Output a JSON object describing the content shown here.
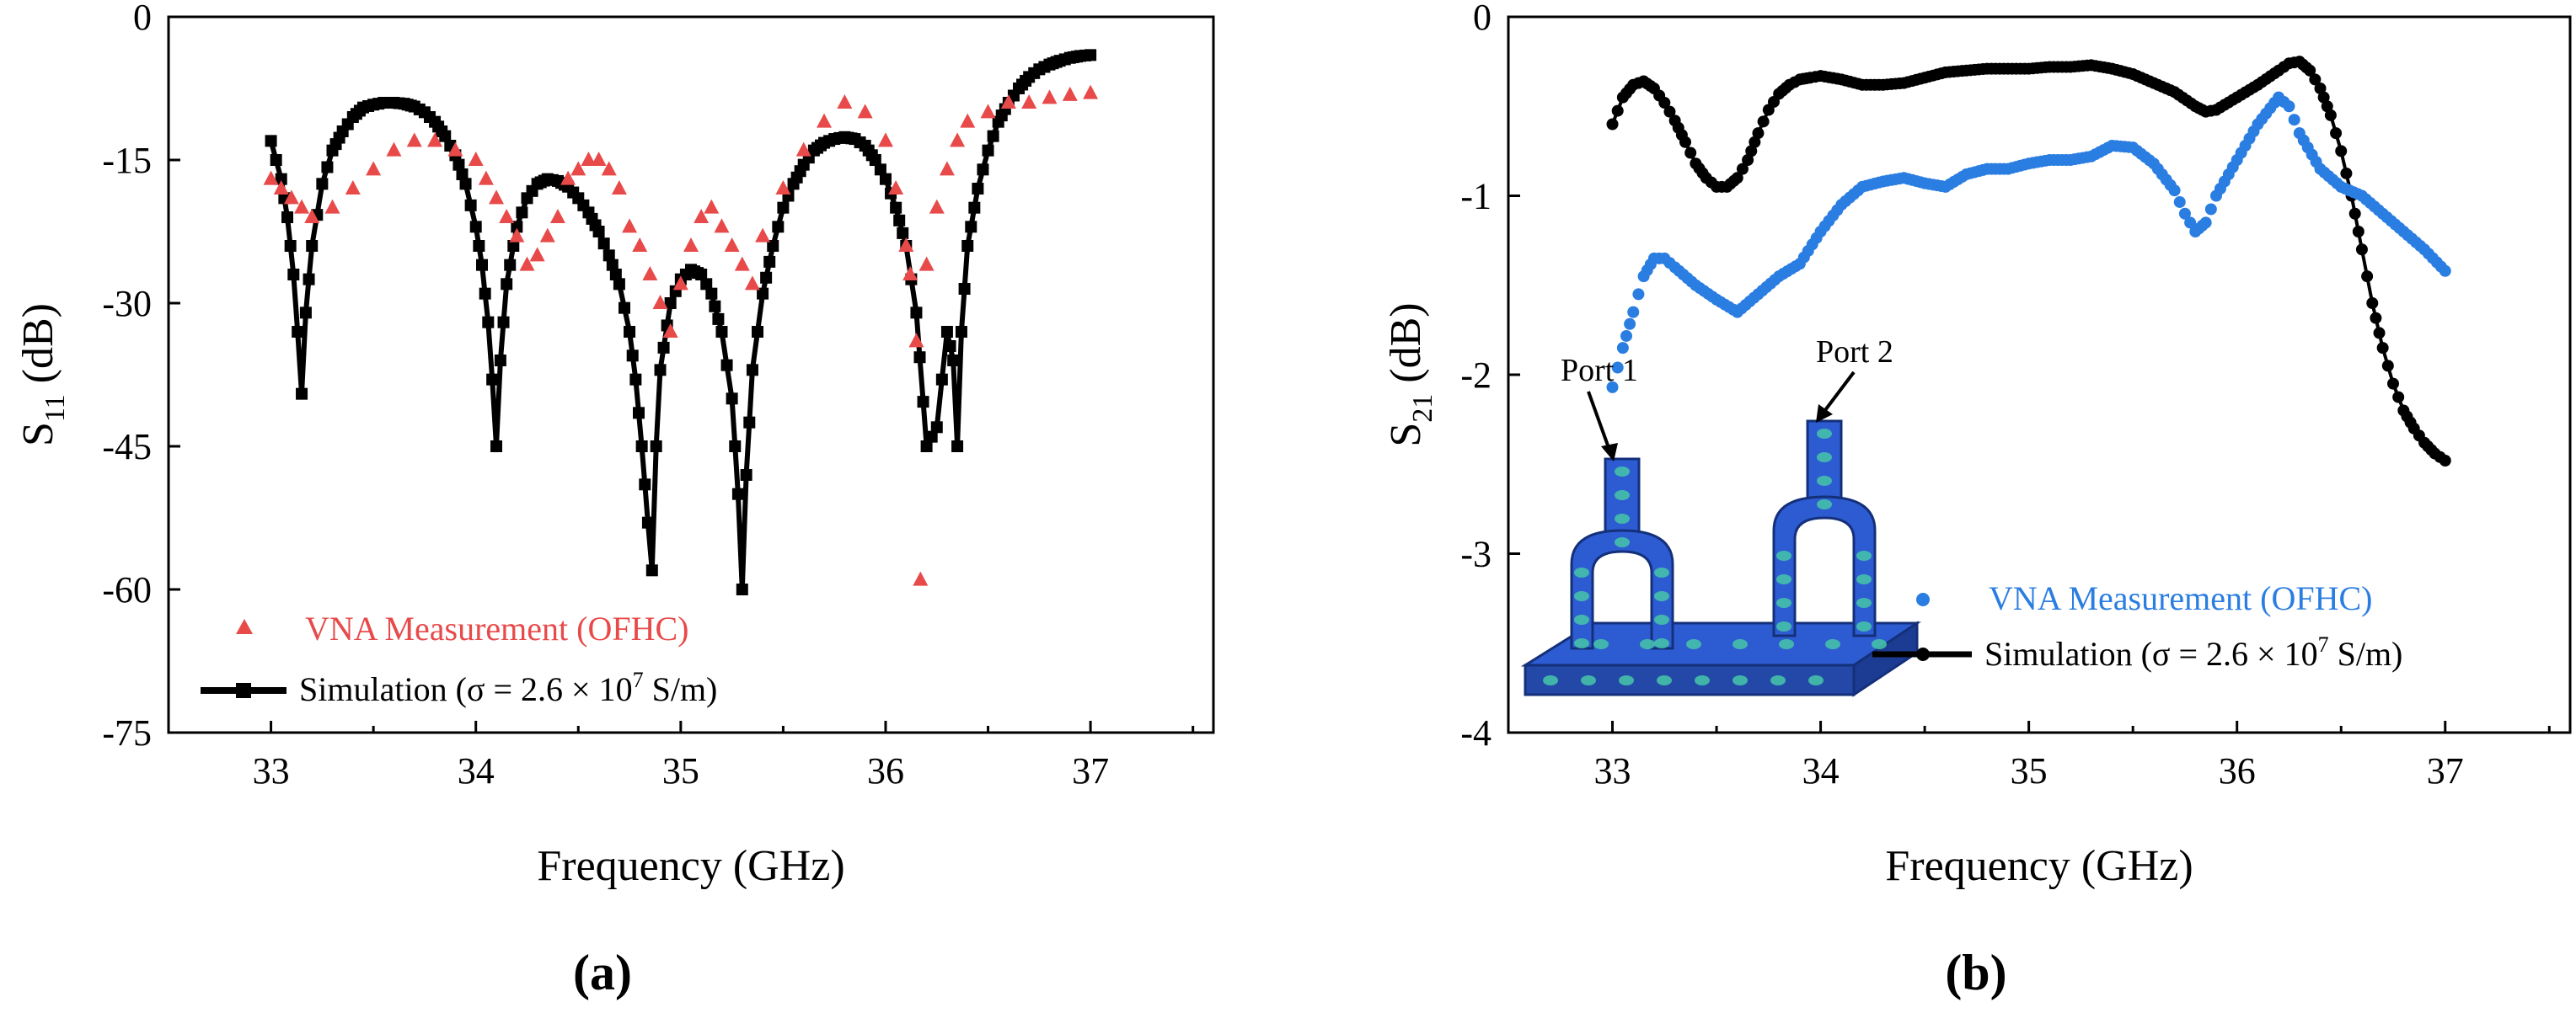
{
  "colors": {
    "measurement": "#e84a4a",
    "measurement_b": "#2a7de1",
    "simulation": "#000000",
    "model_body": "#2d5bd1",
    "model_spot": "#46c7a8"
  },
  "chart_data": [
    {
      "type": "scatter",
      "panel_label": "(a)",
      "xlabel": "Frequency (GHz)",
      "ylabel_main": "S",
      "ylabel_sub": "11",
      "ylabel_unit": " (dB)",
      "xlim": [
        32.5,
        37.6
      ],
      "ylim": [
        -75,
        0
      ],
      "xticks": [
        33,
        34,
        35,
        36,
        37
      ],
      "xtick_labels": [
        "33",
        "34",
        "35",
        "36",
        "37"
      ],
      "yticks": [
        0,
        -15,
        -30,
        -45,
        -60,
        -75
      ],
      "ytick_labels": [
        "0",
        "-15",
        "-30",
        "-45",
        "-60",
        "-75"
      ],
      "legend": {
        "measurement": "VNA Measurement (OFHC)",
        "simulation_prefix": "Simulation (σ = 2.6 × 10",
        "simulation_exp": "7",
        "simulation_suffix": " S/m)"
      },
      "series": [
        {
          "name": "VNA Measurement (OFHC)",
          "marker": "triangle",
          "x": [
            33.0,
            33.05,
            33.1,
            33.15,
            33.2,
            33.3,
            33.4,
            33.5,
            33.6,
            33.7,
            33.8,
            33.9,
            34.0,
            34.05,
            34.1,
            34.15,
            34.2,
            34.25,
            34.3,
            34.35,
            34.4,
            34.45,
            34.5,
            34.55,
            34.6,
            34.65,
            34.7,
            34.75,
            34.8,
            34.85,
            34.9,
            34.95,
            35.0,
            35.05,
            35.1,
            35.15,
            35.2,
            35.25,
            35.3,
            35.35,
            35.4,
            35.5,
            35.6,
            35.7,
            35.8,
            35.9,
            36.0,
            36.05,
            36.1,
            36.12,
            36.15,
            36.17,
            36.2,
            36.25,
            36.3,
            36.35,
            36.4,
            36.5,
            36.6,
            36.7,
            36.8,
            36.9,
            37.0
          ],
          "y": [
            -17,
            -18,
            -19,
            -20,
            -21,
            -20,
            -18,
            -16,
            -14,
            -13,
            -13,
            -14,
            -15,
            -17,
            -19,
            -21,
            -23,
            -26,
            -25,
            -23,
            -21,
            -17,
            -16,
            -15,
            -15,
            -16,
            -18,
            -22,
            -24,
            -27,
            -30,
            -33,
            -28,
            -24,
            -21,
            -20,
            -22,
            -24,
            -26,
            -28,
            -23,
            -18,
            -14,
            -11,
            -9,
            -10,
            -13,
            -18,
            -24,
            -27,
            -34,
            -59,
            -26,
            -20,
            -16,
            -13,
            -11,
            -10,
            -9,
            -9,
            -8.5,
            -8.2,
            -8
          ]
        },
        {
          "name": "Simulation (σ = 2.6 × 10^7 S/m)",
          "marker": "square",
          "x": [
            33.0,
            33.05,
            33.08,
            33.11,
            33.13,
            33.15,
            33.17,
            33.2,
            33.25,
            33.3,
            33.35,
            33.4,
            33.45,
            33.5,
            33.55,
            33.6,
            33.65,
            33.7,
            33.75,
            33.8,
            33.85,
            33.9,
            33.95,
            34.0,
            34.03,
            34.06,
            34.08,
            34.1,
            34.12,
            34.15,
            34.2,
            34.25,
            34.3,
            34.35,
            34.4,
            34.45,
            34.5,
            34.55,
            34.6,
            34.65,
            34.7,
            34.75,
            34.78,
            34.81,
            34.84,
            34.86,
            34.88,
            34.9,
            34.95,
            35.0,
            35.05,
            35.1,
            35.15,
            35.2,
            35.25,
            35.28,
            35.3,
            35.32,
            35.35,
            35.4,
            35.45,
            35.5,
            35.55,
            35.6,
            35.65,
            35.7,
            35.75,
            35.8,
            35.85,
            35.9,
            35.95,
            36.0,
            36.05,
            36.1,
            36.15,
            36.2,
            36.25,
            36.3,
            36.33,
            36.35,
            36.37,
            36.4,
            36.45,
            36.5,
            36.55,
            36.6,
            36.65,
            36.7,
            36.75,
            36.8,
            36.85,
            36.9,
            36.95,
            37.0
          ],
          "y": [
            -13,
            -17,
            -21,
            -27,
            -33,
            -39.5,
            -31,
            -24,
            -17.5,
            -14,
            -12,
            -10.5,
            -9.5,
            -9.2,
            -9.0,
            -9.0,
            -9.1,
            -9.4,
            -10,
            -11,
            -12.5,
            -14.5,
            -17.5,
            -22,
            -26,
            -32,
            -38,
            -45,
            -36,
            -28,
            -22,
            -19,
            -17.5,
            -17,
            -17.2,
            -17.8,
            -19,
            -20.5,
            -22.5,
            -25,
            -28,
            -33,
            -38,
            -45,
            -53,
            -58,
            -45,
            -37,
            -30,
            -27.5,
            -26.5,
            -27,
            -29,
            -33,
            -40,
            -50,
            -60,
            -48,
            -37,
            -29,
            -24,
            -20,
            -17.5,
            -15.5,
            -14,
            -13.2,
            -12.8,
            -12.6,
            -12.8,
            -13.5,
            -15,
            -17,
            -20,
            -24,
            -31,
            -45,
            -43,
            -33,
            -36,
            -45,
            -33,
            -24,
            -18,
            -14,
            -11,
            -9,
            -7.5,
            -6.3,
            -5.5,
            -5,
            -4.6,
            -4.3,
            -4.1,
            -4.0
          ]
        }
      ]
    },
    {
      "type": "scatter",
      "panel_label": "(b)",
      "xlabel": "Frequency (GHz)",
      "ylabel_main": "S",
      "ylabel_sub": "21",
      "ylabel_unit": " (dB)",
      "xlim": [
        32.5,
        37.6
      ],
      "ylim": [
        -4,
        0
      ],
      "xticks": [
        33,
        34,
        35,
        36,
        37
      ],
      "xtick_labels": [
        "33",
        "34",
        "35",
        "36",
        "37"
      ],
      "yticks": [
        0,
        -1,
        -2,
        -3,
        -4
      ],
      "ytick_labels": [
        "0",
        "-1",
        "-2",
        "-3",
        "-4"
      ],
      "legend": {
        "measurement": "VNA Measurement (OFHC)",
        "simulation_prefix": "Simulation (σ = 2.6 × 10",
        "simulation_exp": "7",
        "simulation_suffix": " S/m)"
      },
      "annotations": {
        "port1": "Port 1",
        "port2": "Port 2"
      },
      "series": [
        {
          "name": "VNA Measurement (OFHC)",
          "marker": "circle",
          "x": [
            33.0,
            33.05,
            33.1,
            33.15,
            33.2,
            33.25,
            33.3,
            33.4,
            33.5,
            33.6,
            33.7,
            33.8,
            33.9,
            34.0,
            34.1,
            34.2,
            34.3,
            34.4,
            34.5,
            34.6,
            34.7,
            34.8,
            34.9,
            35.0,
            35.1,
            35.2,
            35.3,
            35.4,
            35.5,
            35.6,
            35.7,
            35.75,
            35.8,
            35.85,
            35.9,
            36.0,
            36.1,
            36.2,
            36.25,
            36.3,
            36.4,
            36.5,
            36.6,
            36.7,
            36.8,
            36.9,
            37.0
          ],
          "y": [
            -2.07,
            -1.85,
            -1.65,
            -1.45,
            -1.35,
            -1.35,
            -1.4,
            -1.5,
            -1.58,
            -1.65,
            -1.55,
            -1.45,
            -1.38,
            -1.2,
            -1.05,
            -0.95,
            -0.92,
            -0.9,
            -0.93,
            -0.95,
            -0.88,
            -0.85,
            -0.85,
            -0.82,
            -0.8,
            -0.8,
            -0.78,
            -0.72,
            -0.73,
            -0.82,
            -0.97,
            -1.1,
            -1.2,
            -1.15,
            -1.0,
            -0.8,
            -0.6,
            -0.45,
            -0.5,
            -0.65,
            -0.85,
            -0.95,
            -1.0,
            -1.1,
            -1.2,
            -1.3,
            -1.42
          ]
        },
        {
          "name": "Simulation (σ = 2.6 × 10^7 S/m)",
          "marker": "circle",
          "x": [
            33.0,
            33.05,
            33.1,
            33.15,
            33.2,
            33.25,
            33.3,
            33.35,
            33.4,
            33.45,
            33.5,
            33.55,
            33.6,
            33.65,
            33.7,
            33.75,
            33.8,
            33.85,
            33.9,
            33.95,
            34.0,
            34.1,
            34.2,
            34.3,
            34.4,
            34.5,
            34.6,
            34.7,
            34.8,
            34.9,
            35.0,
            35.1,
            35.2,
            35.3,
            35.4,
            35.5,
            35.6,
            35.7,
            35.8,
            35.85,
            35.9,
            36.0,
            36.1,
            36.2,
            36.25,
            36.3,
            36.35,
            36.4,
            36.45,
            36.5,
            36.55,
            36.6,
            36.65,
            36.7,
            36.75,
            36.8,
            36.85,
            36.9,
            36.95,
            37.0
          ],
          "y": [
            -0.6,
            -0.45,
            -0.38,
            -0.36,
            -0.4,
            -0.48,
            -0.58,
            -0.7,
            -0.82,
            -0.9,
            -0.95,
            -0.95,
            -0.9,
            -0.8,
            -0.65,
            -0.52,
            -0.43,
            -0.38,
            -0.35,
            -0.34,
            -0.33,
            -0.35,
            -0.38,
            -0.38,
            -0.37,
            -0.34,
            -0.31,
            -0.3,
            -0.29,
            -0.29,
            -0.29,
            -0.28,
            -0.28,
            -0.27,
            -0.29,
            -0.32,
            -0.37,
            -0.42,
            -0.5,
            -0.53,
            -0.52,
            -0.45,
            -0.38,
            -0.3,
            -0.26,
            -0.25,
            -0.3,
            -0.4,
            -0.55,
            -0.75,
            -1.0,
            -1.3,
            -1.6,
            -1.85,
            -2.05,
            -2.2,
            -2.3,
            -2.38,
            -2.44,
            -2.48
          ]
        }
      ]
    }
  ]
}
